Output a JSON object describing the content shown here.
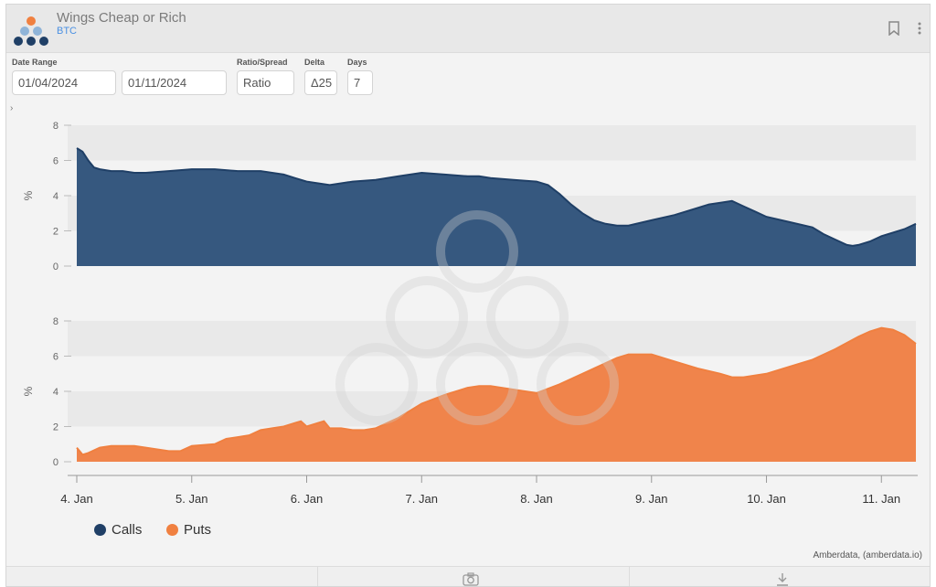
{
  "header": {
    "title": "Wings Cheap or Rich",
    "subtitle": "BTC",
    "bookmark_icon": "bookmark-icon",
    "menu_icon": "more-vertical-icon"
  },
  "controls": {
    "date_range_label": "Date Range",
    "start_date": "01/04/2024",
    "end_date": "01/11/2024",
    "ratio_label": "Ratio/Spread",
    "ratio_value": "Ratio",
    "delta_label": "Delta",
    "delta_value": "Δ25",
    "days_label": "Days",
    "days_value": "7"
  },
  "colors": {
    "calls": "#1f3f66",
    "calls_fill": "#36587f",
    "puts": "#f08040",
    "puts_fill": "#f0844b"
  },
  "chart_data": {
    "type": "area",
    "x_tick_labels": [
      "4. Jan",
      "5. Jan",
      "6. Jan",
      "7. Jan",
      "8. Jan",
      "9. Jan",
      "10. Jan",
      "11. Jan"
    ],
    "x_range": [
      4.0,
      11.3
    ],
    "grid": false,
    "legend_position": "bottom-left",
    "panels": [
      {
        "ylabel": "%",
        "ylim": [
          0,
          8
        ],
        "yticks": [
          0,
          2,
          4,
          6,
          8
        ],
        "series": {
          "name": "Calls",
          "x": [
            4.0,
            4.05,
            4.1,
            4.15,
            4.2,
            4.3,
            4.4,
            4.5,
            4.6,
            4.8,
            5.0,
            5.2,
            5.4,
            5.6,
            5.8,
            5.9,
            6.0,
            6.2,
            6.4,
            6.6,
            6.8,
            7.0,
            7.2,
            7.4,
            7.5,
            7.6,
            7.8,
            8.0,
            8.1,
            8.2,
            8.3,
            8.4,
            8.5,
            8.6,
            8.7,
            8.8,
            9.0,
            9.2,
            9.4,
            9.5,
            9.6,
            9.7,
            9.8,
            9.9,
            10.0,
            10.2,
            10.4,
            10.5,
            10.6,
            10.7,
            10.75,
            10.8,
            10.9,
            11.0,
            11.2,
            11.3
          ],
          "y": [
            6.7,
            6.5,
            6.0,
            5.6,
            5.5,
            5.4,
            5.4,
            5.3,
            5.3,
            5.4,
            5.5,
            5.5,
            5.4,
            5.4,
            5.2,
            5.0,
            4.8,
            4.6,
            4.8,
            4.9,
            5.1,
            5.3,
            5.2,
            5.1,
            5.1,
            5.0,
            4.9,
            4.8,
            4.6,
            4.1,
            3.5,
            3.0,
            2.6,
            2.4,
            2.3,
            2.3,
            2.6,
            2.9,
            3.3,
            3.5,
            3.6,
            3.7,
            3.4,
            3.1,
            2.8,
            2.5,
            2.2,
            1.8,
            1.5,
            1.2,
            1.15,
            1.2,
            1.4,
            1.7,
            2.1,
            2.4
          ]
        }
      },
      {
        "ylabel": "%",
        "ylim": [
          0,
          8
        ],
        "yticks": [
          0,
          2,
          4,
          6,
          8
        ],
        "series": {
          "name": "Puts",
          "x": [
            4.0,
            4.05,
            4.1,
            4.2,
            4.3,
            4.5,
            4.6,
            4.7,
            4.8,
            4.9,
            5.0,
            5.2,
            5.3,
            5.4,
            5.5,
            5.6,
            5.7,
            5.8,
            5.9,
            5.95,
            6.0,
            6.1,
            6.15,
            6.2,
            6.3,
            6.4,
            6.5,
            6.6,
            6.8,
            7.0,
            7.2,
            7.4,
            7.5,
            7.6,
            7.8,
            8.0,
            8.2,
            8.4,
            8.6,
            8.7,
            8.8,
            9.0,
            9.1,
            9.2,
            9.4,
            9.6,
            9.7,
            9.8,
            10.0,
            10.2,
            10.4,
            10.6,
            10.8,
            10.9,
            11.0,
            11.1,
            11.2,
            11.3
          ],
          "y": [
            0.8,
            0.4,
            0.5,
            0.8,
            0.9,
            0.9,
            0.8,
            0.7,
            0.6,
            0.6,
            0.9,
            1.0,
            1.3,
            1.4,
            1.5,
            1.8,
            1.9,
            2.0,
            2.2,
            2.3,
            2.0,
            2.2,
            2.3,
            1.9,
            1.9,
            1.8,
            1.8,
            1.9,
            2.5,
            3.3,
            3.8,
            4.2,
            4.3,
            4.3,
            4.1,
            3.9,
            4.4,
            5.0,
            5.6,
            5.9,
            6.1,
            6.1,
            5.9,
            5.7,
            5.3,
            5.0,
            4.8,
            4.8,
            5.0,
            5.4,
            5.8,
            6.4,
            7.1,
            7.4,
            7.6,
            7.5,
            7.2,
            6.7
          ]
        }
      }
    ],
    "legend": [
      "Calls",
      "Puts"
    ]
  },
  "credit": "Amberdata, (amberdata.io)",
  "footer": {
    "camera_icon": "camera-icon",
    "download_icon": "download-icon"
  }
}
